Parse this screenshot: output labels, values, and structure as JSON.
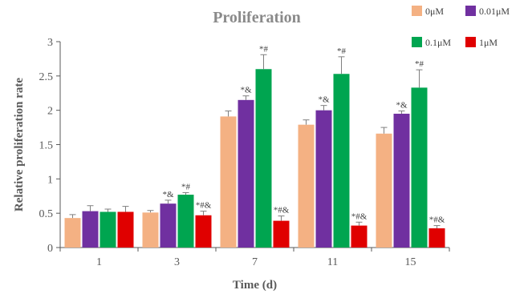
{
  "chart_data": {
    "type": "bar",
    "title": "Proliferation",
    "xlabel": "Time (d)",
    "ylabel": "Relative proliferation rate",
    "ylim": [
      0,
      3
    ],
    "yticks": [
      "0",
      "0.5",
      "1",
      "1.5",
      "2",
      "2.5",
      "3"
    ],
    "categories": [
      "1",
      "3",
      "7",
      "11",
      "15"
    ],
    "grid": false,
    "legend_position": "top-right",
    "series": [
      {
        "name": "0μM",
        "color": "#F4B183",
        "values": [
          0.43,
          0.51,
          1.91,
          1.79,
          1.66
        ],
        "errors": [
          0.05,
          0.03,
          0.08,
          0.07,
          0.09
        ],
        "annotations": [
          "",
          "",
          "",
          "",
          ""
        ]
      },
      {
        "name": "0.01μM",
        "color": "#7030A0",
        "values": [
          0.53,
          0.64,
          2.15,
          2.0,
          1.95
        ],
        "errors": [
          0.08,
          0.05,
          0.06,
          0.07,
          0.04
        ],
        "annotations": [
          "",
          "*&",
          "*&",
          "*&",
          "*&"
        ]
      },
      {
        "name": "0.1μM",
        "color": "#00A550",
        "values": [
          0.52,
          0.77,
          2.6,
          2.53,
          2.33
        ],
        "errors": [
          0.04,
          0.03,
          0.21,
          0.25,
          0.26
        ],
        "annotations": [
          "",
          "*#",
          "*#",
          "*#",
          "*#"
        ]
      },
      {
        "name": "1μM",
        "color": "#E00000",
        "values": [
          0.52,
          0.47,
          0.39,
          0.32,
          0.28
        ],
        "errors": [
          0.08,
          0.06,
          0.07,
          0.05,
          0.04
        ],
        "annotations": [
          "",
          "*#&",
          "*#&",
          "*#&",
          "*#&"
        ]
      }
    ]
  }
}
